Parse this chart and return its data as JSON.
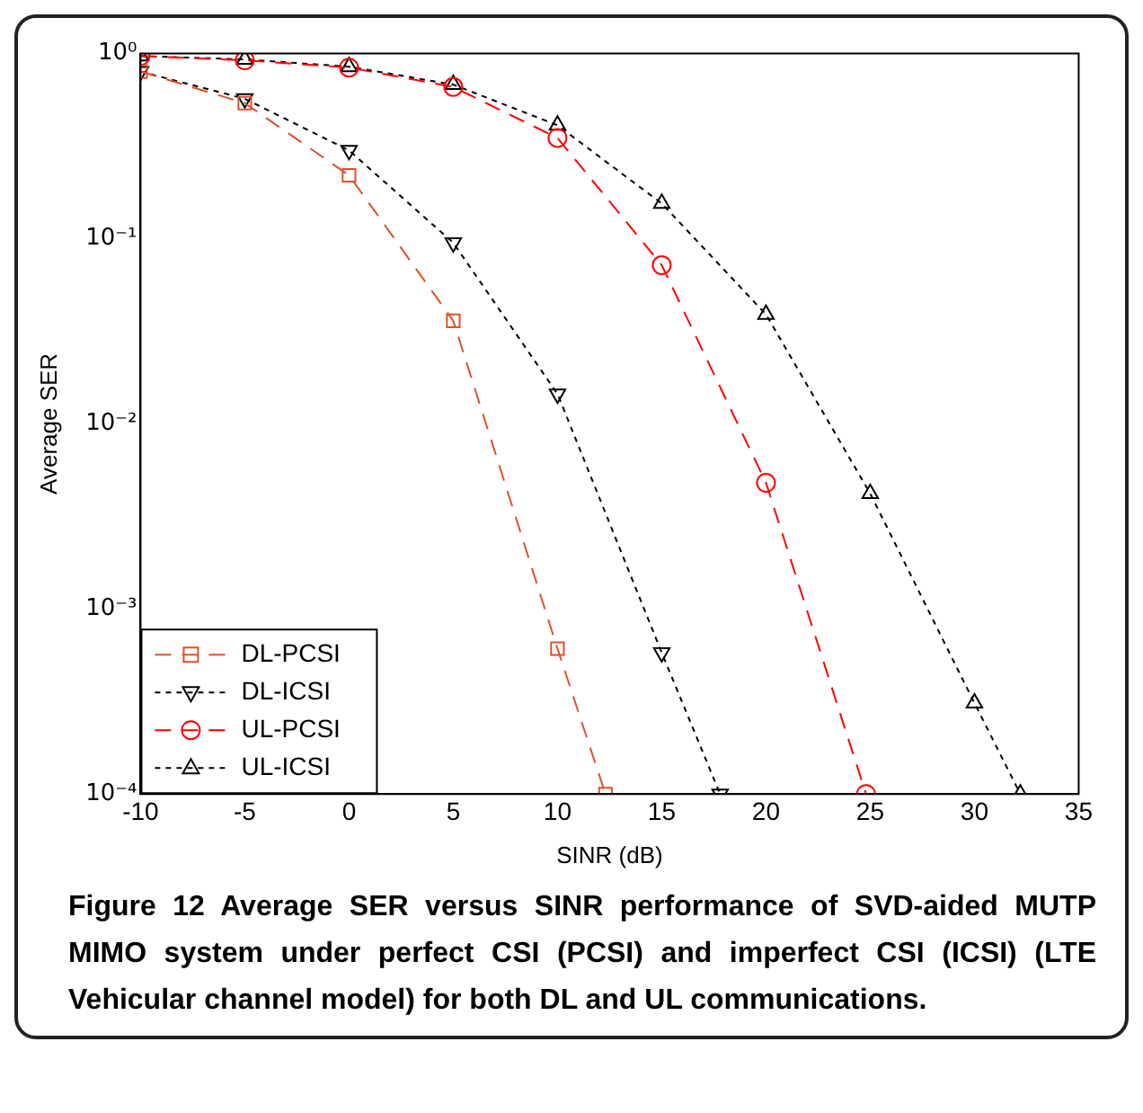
{
  "chart_data": {
    "type": "line",
    "xlabel": "SINR (dB)",
    "ylabel": "Average SER",
    "log": "y",
    "xlim": [
      -10,
      35
    ],
    "xticks": [
      -10,
      -5,
      0,
      5,
      10,
      15,
      20,
      25,
      30,
      35
    ],
    "ylim": [
      0.0001,
      1
    ],
    "yticks": [
      {
        "value": 0.0001,
        "label": "10⁻⁴"
      },
      {
        "value": 0.001,
        "label": "10⁻³"
      },
      {
        "value": 0.01,
        "label": "10⁻²"
      },
      {
        "value": 0.1,
        "label": "10⁻¹"
      },
      {
        "value": 1,
        "label": "10⁰"
      }
    ],
    "grid": false,
    "legend": "bottom left",
    "annotations": [
      "Figure 12 Average SER versus SINR performance of SVD-aided MUTP MIMO system under perfect CSI (PCSI) and imperfect CSI (ICSI) (LTE Vehicular channel model) for both DL and UL communications."
    ],
    "series": [
      {
        "name": "DL-PCSI",
        "color": "#e0502a",
        "marker": "square",
        "line_style": "dashed",
        "x": [
          -10,
          -5,
          0,
          5,
          10,
          12.3
        ],
        "values": [
          0.8,
          0.54,
          0.22,
          0.036,
          0.00061,
          0.0001
        ]
      },
      {
        "name": "DL-ICSI",
        "color": "#000000",
        "marker": "triangle_down",
        "line_style": "dotted",
        "x": [
          -10,
          -5,
          0,
          5,
          10,
          15,
          17.8
        ],
        "values": [
          0.8,
          0.57,
          0.3,
          0.095,
          0.0145,
          0.00058,
          0.0001
        ]
      },
      {
        "name": "UL-PCSI",
        "color": "#ff0000",
        "marker": "circle",
        "line_style": "dashed",
        "x": [
          -10,
          -5,
          0,
          5,
          10,
          15,
          20,
          24.8
        ],
        "values": [
          0.97,
          0.92,
          0.84,
          0.66,
          0.35,
          0.072,
          0.0048,
          0.0001
        ]
      },
      {
        "name": "UL-ICSI",
        "color": "#000000",
        "marker": "triangle",
        "line_style": "dotted",
        "x": [
          -10,
          -5,
          0,
          5,
          10,
          15,
          20,
          25,
          30,
          32.2
        ],
        "values": [
          0.97,
          0.93,
          0.85,
          0.68,
          0.41,
          0.155,
          0.039,
          0.0042,
          0.00031,
          0.0001
        ]
      }
    ]
  }
}
